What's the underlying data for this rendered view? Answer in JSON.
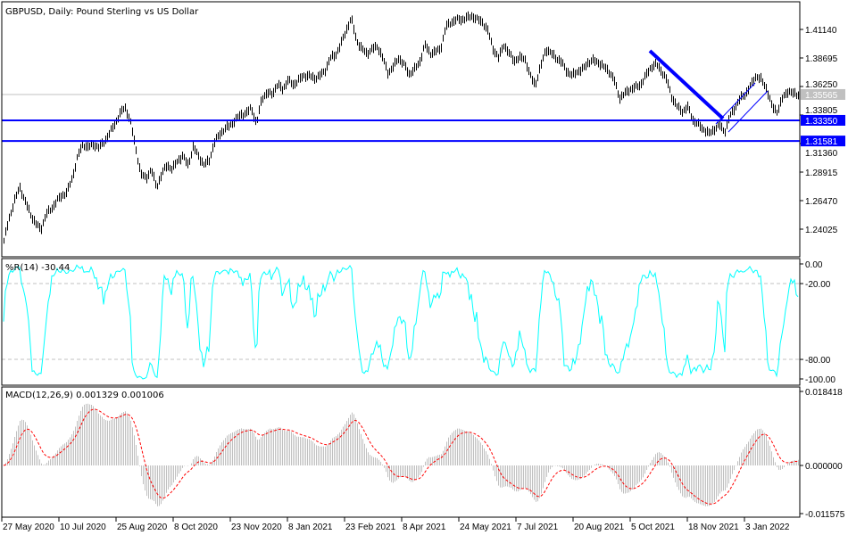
{
  "title": "GBPUSD, Daily:  Pound Sterling vs US Dollar",
  "colors": {
    "bars": "#000000",
    "lines": "#0000ff",
    "wpr": "#00ffff",
    "macd_hist": "#c0c0c0",
    "macd_signal": "#ff0000",
    "current": "#c0c0c0",
    "grid": "#c0c0c0"
  },
  "chart_data": [
    {
      "type": "ohlc",
      "symbol": "GBPUSD",
      "timeframe": "Daily",
      "ylim": [
        1.225,
        1.43
      ],
      "yticks": [
        "1.41140",
        "1.38695",
        "1.36250",
        "1.33805",
        "1.31360",
        "1.28915",
        "1.26470",
        "1.24025"
      ],
      "current_price": {
        "value": 1.35565,
        "label": "1.35565"
      },
      "horizontal_lines": [
        {
          "value": 1.3335,
          "label": "1.33350"
        },
        {
          "value": 1.31581,
          "label": "1.31581"
        }
      ],
      "trendlines": [
        {
          "style": "thick",
          "from": [
            "5 Oct 2021",
            1.395
          ],
          "to": [
            "18 Nov 2021",
            1.3365
          ]
        },
        {
          "style": "thin",
          "from": [
            "18 Nov 2021",
            1.329
          ],
          "to": [
            "3 Jan 2022",
            1.364
          ]
        },
        {
          "style": "thin",
          "from": [
            "25 Nov 2021",
            1.322
          ],
          "to": [
            "10 Jan 2022",
            1.3575
          ]
        }
      ],
      "approx_closes": [
        1.2303,
        1.2494,
        1.2647,
        1.2762,
        1.2647,
        1.2533,
        1.2456,
        1.2395,
        1.2533,
        1.2571,
        1.2647,
        1.2685,
        1.2724,
        1.2838,
        1.3029,
        1.3128,
        1.3106,
        1.3128,
        1.3106,
        1.3144,
        1.322,
        1.3297,
        1.3388,
        1.3449,
        1.3335,
        1.3106,
        1.2876,
        1.2838,
        1.2915,
        1.2762,
        1.2876,
        1.2953,
        1.2915,
        1.2991,
        1.3029,
        1.2953,
        1.3106,
        1.3029,
        1.2953,
        1.2991,
        1.3144,
        1.322,
        1.3258,
        1.3297,
        1.3335,
        1.3388,
        1.3388,
        1.3449,
        1.3297,
        1.3526,
        1.3564,
        1.3564,
        1.364,
        1.3602,
        1.3679,
        1.364,
        1.3679,
        1.3717,
        1.3717,
        1.3694,
        1.3717,
        1.3755,
        1.3869,
        1.3892,
        1.3984,
        1.4099,
        1.4213,
        1.4022,
        1.3946,
        1.3908,
        1.3946,
        1.3969,
        1.3869,
        1.374,
        1.3793,
        1.3869,
        1.3816,
        1.3732,
        1.377,
        1.3831,
        1.3984,
        1.3908,
        1.3923,
        1.3946,
        1.4137,
        1.4175,
        1.4198,
        1.4198,
        1.4213,
        1.4229,
        1.4198,
        1.4175,
        1.4099,
        1.3946,
        1.3869,
        1.3984,
        1.3908,
        1.3847,
        1.3869,
        1.3869,
        1.3717,
        1.364,
        1.3793,
        1.3946,
        1.3908,
        1.3869,
        1.3831,
        1.3755,
        1.3717,
        1.3755,
        1.377,
        1.3831,
        1.3847,
        1.3831,
        1.3793,
        1.3755,
        1.3679,
        1.3526,
        1.3564,
        1.3602,
        1.3617,
        1.364,
        1.3717,
        1.3793,
        1.3816,
        1.3755,
        1.3679,
        1.3526,
        1.3449,
        1.3411,
        1.3449,
        1.3335,
        1.3297,
        1.3258,
        1.322,
        1.3258,
        1.3297,
        1.3235,
        1.3373,
        1.3449,
        1.3526,
        1.3564,
        1.364,
        1.3717,
        1.3679,
        1.3602,
        1.3449,
        1.3411,
        1.3526,
        1.3587,
        1.3564,
        1.35565
      ],
      "xticks": [
        "27 May 2020",
        "10 Jul 2020",
        "25 Aug 2020",
        "8 Oct 2020",
        "23 Nov 2020",
        "8 Jan 2021",
        "23 Feb 2021",
        "8 Apr 2021",
        "24 May 2021",
        "7 Jul 2021",
        "20 Aug 2021",
        "5 Oct 2021",
        "18 Nov 2021",
        "3 Jan 2022"
      ]
    },
    {
      "type": "line",
      "indicator": "%R(14)",
      "label": "%R(14) -30.44",
      "last_value": -30.44,
      "ylim": [
        -100,
        0
      ],
      "yticks": [
        "0.00",
        "-20.00",
        "-80.00",
        "-100.00"
      ],
      "levels": [
        -20,
        -80
      ]
    },
    {
      "type": "bar",
      "indicator": "MACD(12,26,9)",
      "label": "MACD(12,26,9) 0.001329 0.001006",
      "macd": 0.001329,
      "signal": 0.001006,
      "ylim": [
        -0.011575,
        0.018418
      ],
      "yticks": [
        "0.018418",
        "0.000000",
        "-0.011575"
      ]
    }
  ]
}
